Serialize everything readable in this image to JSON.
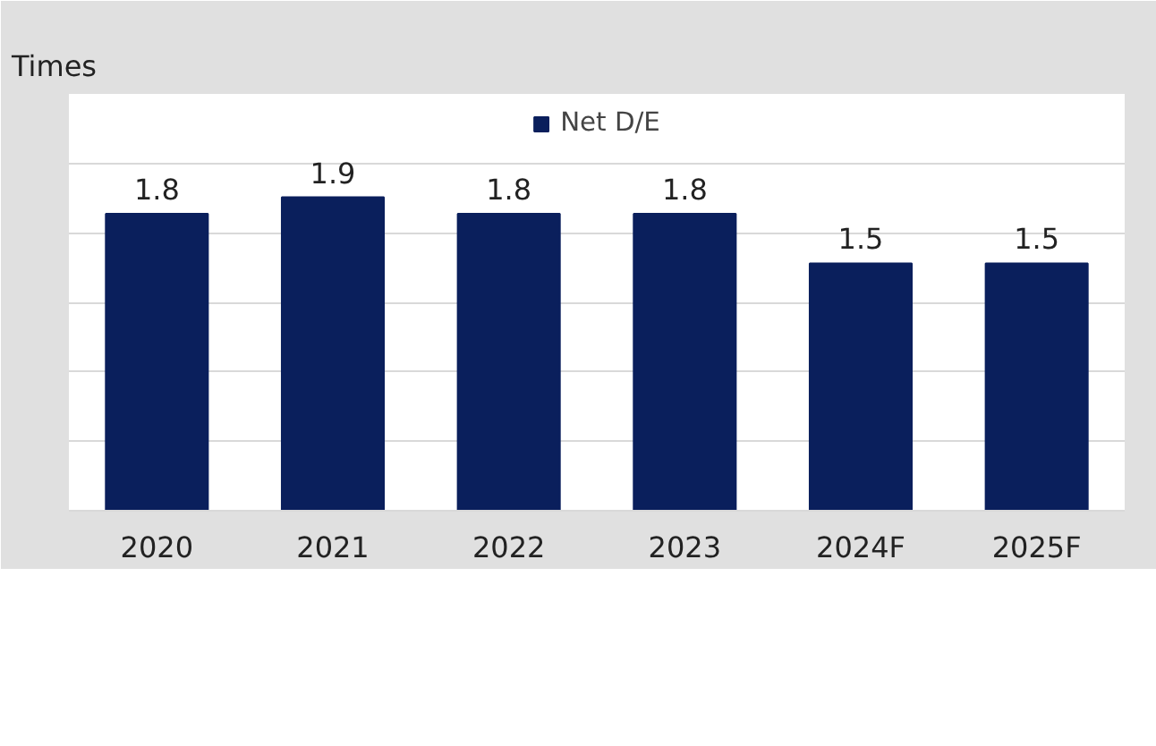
{
  "chart_data": {
    "type": "bar",
    "ylabel": "Times",
    "categories": [
      "2020",
      "2021",
      "2022",
      "2023",
      "2024F",
      "2025F"
    ],
    "series": [
      {
        "name": "Net D/E",
        "color": "#0a1f5c",
        "values": [
          1.8,
          1.9,
          1.8,
          1.8,
          1.5,
          1.5
        ]
      }
    ],
    "grid": "y",
    "tick_labels": "x",
    "data_labels": true,
    "legend": "top"
  }
}
